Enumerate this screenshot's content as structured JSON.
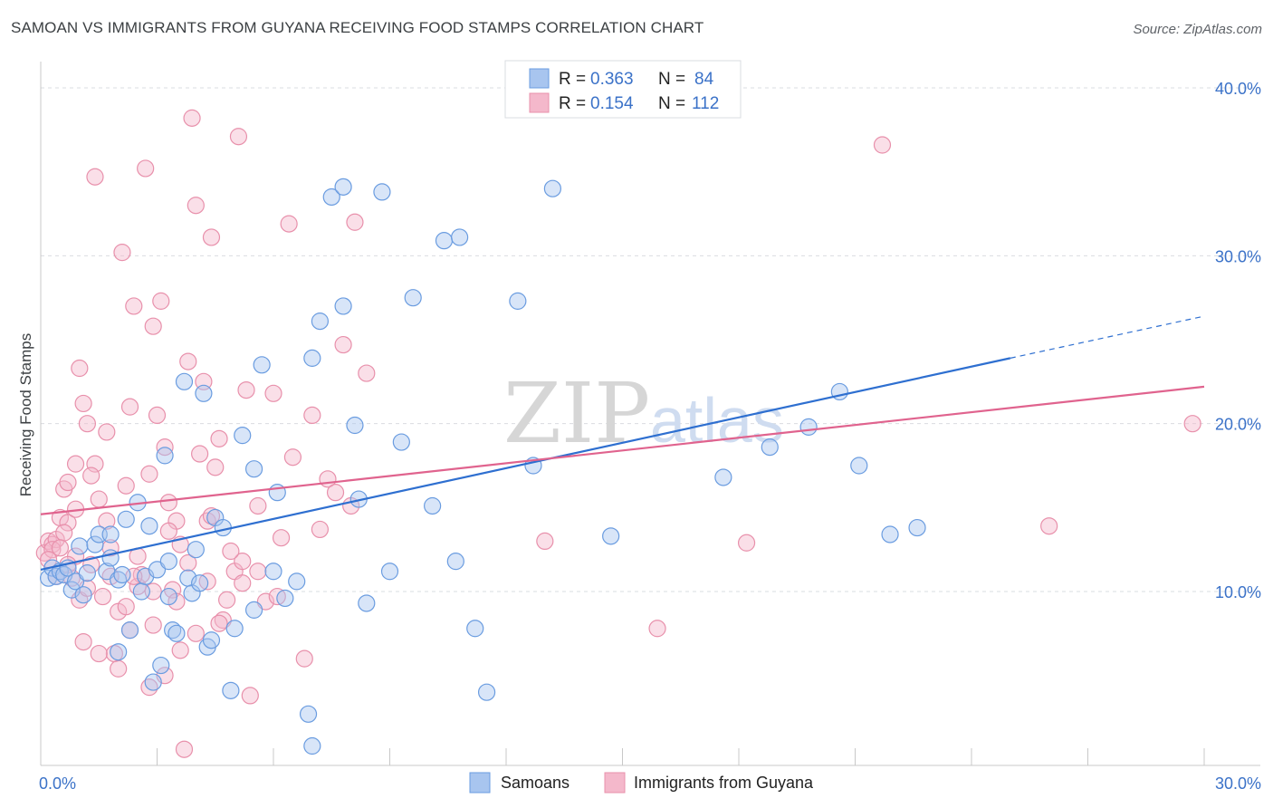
{
  "header": {
    "title": "SAMOAN VS IMMIGRANTS FROM GUYANA RECEIVING FOOD STAMPS CORRELATION CHART",
    "source": "Source: ZipAtlas.com"
  },
  "watermark": {
    "zip": "ZIP",
    "atlas": "atlas"
  },
  "stats_legend": {
    "rows": [
      {
        "r_label": "R =",
        "r_value": "0.363",
        "n_label": "N =",
        "n_value": "84",
        "color": "#a8c5ef"
      },
      {
        "r_label": "R =",
        "r_value": "0.154",
        "n_label": "N =",
        "n_value": "112",
        "color": "#f4b8cb"
      }
    ]
  },
  "bottom_legend": {
    "items": [
      {
        "label": "Samoans",
        "color": "#a8c5ef"
      },
      {
        "label": "Immigrants from Guyana",
        "color": "#f4b8cb"
      }
    ]
  },
  "chart_data": {
    "type": "scatter",
    "ylabel": "Receiving Food Stamps",
    "xlim": [
      0,
      30
    ],
    "ylim": [
      0,
      40
    ],
    "x_tick_labels": [
      {
        "v": 0,
        "label": "0.0%"
      },
      {
        "v": 30,
        "label": "30.0%"
      }
    ],
    "y_tick_labels": [
      {
        "v": 10,
        "label": "10.0%"
      },
      {
        "v": 20,
        "label": "20.0%"
      },
      {
        "v": 30,
        "label": "30.0%"
      },
      {
        "v": 40,
        "label": "40.0%"
      }
    ],
    "grid": true,
    "legend_position": "top-center",
    "series": [
      {
        "name": "Samoans",
        "color": "#6a9ce0",
        "fill": "#a8c5ef",
        "trendline": {
          "x": [
            0,
            25
          ],
          "y": [
            11.3,
            23.9
          ],
          "dashed_to": [
            30,
            26.4
          ],
          "color": "#2e6fd0"
        },
        "points": [
          [
            0.2,
            10.8
          ],
          [
            0.3,
            11.4
          ],
          [
            0.4,
            10.9
          ],
          [
            0.5,
            11.2
          ],
          [
            0.6,
            11.0
          ],
          [
            0.7,
            11.4
          ],
          [
            0.8,
            10.1
          ],
          [
            0.9,
            10.6
          ],
          [
            1.0,
            12.7
          ],
          [
            1.1,
            9.8
          ],
          [
            1.2,
            11.1
          ],
          [
            1.4,
            12.8
          ],
          [
            1.5,
            13.4
          ],
          [
            1.7,
            11.2
          ],
          [
            1.8,
            13.4
          ],
          [
            1.8,
            12.0
          ],
          [
            2.0,
            10.7
          ],
          [
            2.1,
            11.0
          ],
          [
            2.2,
            14.3
          ],
          [
            2.3,
            7.7
          ],
          [
            2.5,
            15.3
          ],
          [
            2.6,
            10.0
          ],
          [
            2.7,
            10.9
          ],
          [
            2.8,
            13.9
          ],
          [
            2.9,
            4.6
          ],
          [
            3.0,
            11.3
          ],
          [
            3.1,
            5.6
          ],
          [
            3.2,
            18.1
          ],
          [
            3.3,
            11.8
          ],
          [
            3.4,
            7.7
          ],
          [
            3.5,
            7.5
          ],
          [
            3.7,
            22.5
          ],
          [
            3.8,
            10.8
          ],
          [
            3.9,
            9.9
          ],
          [
            4.0,
            12.5
          ],
          [
            4.1,
            10.5
          ],
          [
            4.2,
            21.8
          ],
          [
            4.3,
            6.7
          ],
          [
            4.4,
            7.1
          ],
          [
            4.5,
            14.4
          ],
          [
            4.7,
            13.8
          ],
          [
            4.9,
            4.1
          ],
          [
            5.0,
            7.8
          ],
          [
            5.2,
            19.3
          ],
          [
            5.5,
            17.3
          ],
          [
            5.7,
            23.5
          ],
          [
            6.0,
            11.2
          ],
          [
            6.1,
            15.9
          ],
          [
            6.3,
            9.6
          ],
          [
            6.6,
            10.6
          ],
          [
            6.9,
            2.7
          ],
          [
            7.0,
            0.8
          ],
          [
            7.0,
            23.9
          ],
          [
            7.2,
            26.1
          ],
          [
            7.5,
            33.5
          ],
          [
            7.8,
            34.1
          ],
          [
            7.8,
            27.0
          ],
          [
            8.1,
            19.9
          ],
          [
            8.2,
            15.5
          ],
          [
            8.4,
            9.3
          ],
          [
            8.8,
            33.8
          ],
          [
            9.0,
            11.2
          ],
          [
            9.3,
            18.9
          ],
          [
            9.6,
            27.5
          ],
          [
            10.1,
            15.1
          ],
          [
            10.4,
            30.9
          ],
          [
            10.8,
            31.1
          ],
          [
            10.7,
            11.8
          ],
          [
            11.2,
            7.8
          ],
          [
            11.5,
            4.0
          ],
          [
            12.3,
            27.3
          ],
          [
            12.7,
            17.5
          ],
          [
            13.2,
            34.0
          ],
          [
            14.7,
            13.3
          ],
          [
            17.6,
            16.8
          ],
          [
            18.8,
            18.6
          ],
          [
            19.8,
            19.8
          ],
          [
            20.6,
            21.9
          ],
          [
            21.1,
            17.5
          ],
          [
            21.9,
            13.4
          ],
          [
            22.6,
            13.8
          ],
          [
            3.3,
            9.7
          ],
          [
            2.0,
            6.4
          ],
          [
            5.5,
            8.9
          ]
        ]
      },
      {
        "name": "Immigrants from Guyana",
        "color": "#e890ab",
        "fill": "#f4b8cb",
        "trendline": {
          "x": [
            0,
            30
          ],
          "y": [
            14.6,
            22.2
          ],
          "color": "#e0638e"
        },
        "points": [
          [
            0.1,
            12.3
          ],
          [
            0.2,
            13.0
          ],
          [
            0.3,
            12.8
          ],
          [
            0.4,
            13.1
          ],
          [
            0.5,
            14.4
          ],
          [
            0.6,
            16.1
          ],
          [
            0.7,
            16.5
          ],
          [
            0.7,
            14.1
          ],
          [
            0.9,
            17.6
          ],
          [
            0.9,
            12.1
          ],
          [
            1.0,
            23.3
          ],
          [
            1.1,
            21.2
          ],
          [
            1.2,
            20.0
          ],
          [
            1.3,
            11.6
          ],
          [
            1.4,
            17.6
          ],
          [
            1.5,
            15.5
          ],
          [
            1.6,
            9.7
          ],
          [
            1.7,
            19.5
          ],
          [
            1.8,
            10.9
          ],
          [
            1.9,
            6.3
          ],
          [
            2.0,
            5.4
          ],
          [
            2.1,
            30.2
          ],
          [
            2.2,
            16.3
          ],
          [
            2.3,
            21.0
          ],
          [
            2.4,
            27.0
          ],
          [
            2.5,
            10.3
          ],
          [
            2.6,
            11.0
          ],
          [
            2.7,
            35.2
          ],
          [
            2.8,
            17.0
          ],
          [
            2.9,
            25.8
          ],
          [
            3.0,
            20.5
          ],
          [
            3.1,
            27.3
          ],
          [
            3.2,
            18.6
          ],
          [
            3.3,
            15.3
          ],
          [
            3.4,
            10.1
          ],
          [
            3.5,
            14.2
          ],
          [
            3.6,
            12.8
          ],
          [
            3.7,
            0.6
          ],
          [
            3.8,
            23.7
          ],
          [
            3.9,
            38.2
          ],
          [
            4.0,
            33.0
          ],
          [
            4.1,
            18.2
          ],
          [
            4.2,
            22.5
          ],
          [
            4.3,
            14.2
          ],
          [
            4.4,
            31.1
          ],
          [
            4.5,
            17.4
          ],
          [
            4.6,
            19.1
          ],
          [
            4.7,
            8.3
          ],
          [
            4.8,
            9.5
          ],
          [
            5.0,
            11.2
          ],
          [
            5.1,
            37.1
          ],
          [
            5.2,
            11.8
          ],
          [
            5.3,
            22.0
          ],
          [
            5.4,
            3.8
          ],
          [
            5.6,
            15.1
          ],
          [
            5.8,
            9.4
          ],
          [
            6.0,
            21.8
          ],
          [
            6.2,
            13.2
          ],
          [
            6.4,
            31.9
          ],
          [
            6.5,
            18.0
          ],
          [
            6.8,
            6.0
          ],
          [
            7.0,
            20.5
          ],
          [
            7.2,
            13.7
          ],
          [
            7.4,
            16.7
          ],
          [
            7.6,
            15.9
          ],
          [
            7.8,
            24.7
          ],
          [
            8.0,
            15.1
          ],
          [
            8.1,
            32.0
          ],
          [
            8.4,
            23.0
          ],
          [
            1.4,
            34.7
          ],
          [
            2.3,
            7.7
          ],
          [
            2.8,
            4.3
          ],
          [
            3.2,
            5.0
          ],
          [
            2.9,
            8.0
          ],
          [
            1.1,
            7.0
          ],
          [
            0.8,
            10.8
          ],
          [
            1.5,
            6.3
          ],
          [
            0.3,
            12.5
          ],
          [
            0.2,
            11.9
          ],
          [
            0.6,
            13.5
          ],
          [
            4.0,
            7.5
          ],
          [
            4.6,
            8.1
          ],
          [
            3.5,
            9.4
          ],
          [
            5.2,
            10.5
          ],
          [
            6.1,
            9.7
          ],
          [
            2.5,
            12.1
          ],
          [
            1.7,
            14.2
          ],
          [
            0.9,
            14.9
          ],
          [
            1.3,
            16.9
          ],
          [
            4.3,
            10.6
          ],
          [
            13.0,
            13.0
          ],
          [
            18.2,
            12.9
          ],
          [
            15.9,
            7.8
          ],
          [
            21.7,
            36.6
          ],
          [
            26.0,
            13.9
          ],
          [
            29.7,
            20.0
          ],
          [
            2.4,
            10.9
          ],
          [
            3.8,
            11.7
          ],
          [
            0.5,
            12.6
          ],
          [
            1.0,
            9.5
          ],
          [
            2.0,
            8.8
          ],
          [
            3.6,
            6.5
          ],
          [
            4.9,
            12.4
          ],
          [
            5.6,
            11.2
          ],
          [
            0.4,
            10.9
          ],
          [
            1.8,
            12.6
          ],
          [
            2.9,
            10.0
          ],
          [
            3.3,
            13.6
          ],
          [
            0.7,
            11.6
          ],
          [
            1.2,
            10.2
          ],
          [
            2.2,
            9.1
          ],
          [
            4.4,
            14.5
          ]
        ]
      }
    ]
  }
}
